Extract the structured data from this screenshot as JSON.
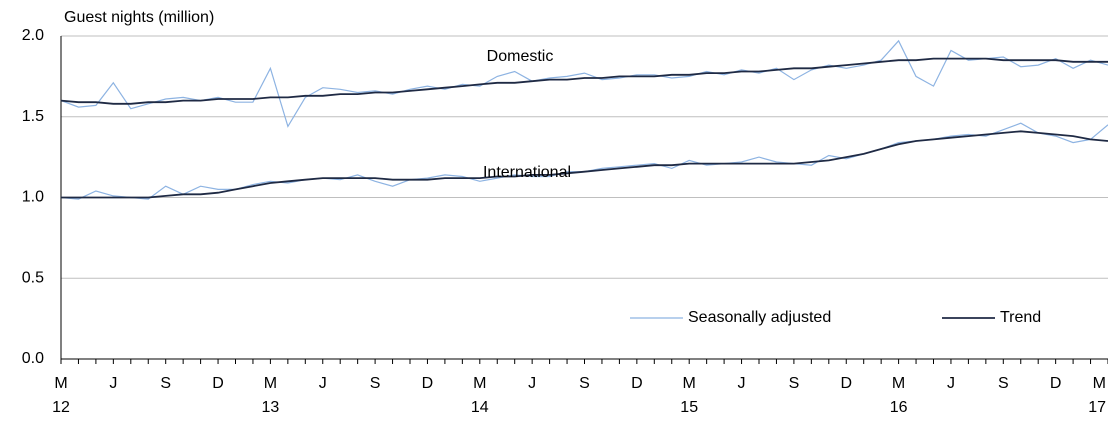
{
  "chart_data": {
    "type": "line",
    "y_axis_label": "Guest nights (million)",
    "categories": [
      "M",
      null,
      null,
      "J",
      null,
      null,
      "S",
      null,
      null,
      "D",
      null,
      null,
      "M",
      null,
      null,
      "J",
      null,
      null,
      "S",
      null,
      null,
      "D",
      null,
      null,
      "M",
      null,
      null,
      "J",
      null,
      null,
      "S",
      null,
      null,
      "D",
      null,
      null,
      "M",
      null,
      null,
      "J",
      null,
      null,
      "S",
      null,
      null,
      "D",
      null,
      null,
      "M",
      null,
      null,
      "J",
      null,
      null,
      "S",
      null,
      null,
      "D",
      null,
      null,
      "M"
    ],
    "x_group_labels": [
      "12",
      "13",
      "14",
      "15",
      "16",
      "17"
    ],
    "ylim": [
      0,
      2
    ],
    "yticks": [
      {
        "value": 0,
        "label": "0.0"
      },
      {
        "value": 0.5,
        "label": "0.5"
      },
      {
        "value": 1,
        "label": "1.0"
      },
      {
        "value": 1.5,
        "label": "1.5"
      },
      {
        "value": 2,
        "label": "2.0"
      }
    ],
    "grid": true,
    "legend": "lower right",
    "annotations": [
      "Domestic",
      "International"
    ],
    "series": [
      {
        "name": "Seasonally adjusted",
        "color": "#8db3e2",
        "group": "Domestic",
        "values": [
          1.6,
          1.56,
          1.57,
          1.71,
          1.55,
          1.58,
          1.61,
          1.62,
          1.6,
          1.62,
          1.59,
          1.59,
          1.8,
          1.44,
          1.62,
          1.68,
          1.67,
          1.65,
          1.66,
          1.64,
          1.67,
          1.69,
          1.67,
          1.7,
          1.69,
          1.75,
          1.78,
          1.72,
          1.74,
          1.75,
          1.77,
          1.73,
          1.74,
          1.76,
          1.76,
          1.74,
          1.75,
          1.78,
          1.76,
          1.79,
          1.77,
          1.8,
          1.73,
          1.79,
          1.82,
          1.8,
          1.82,
          1.85,
          1.97,
          1.75,
          1.69,
          1.91,
          1.85,
          1.86,
          1.87,
          1.81,
          1.82,
          1.86,
          1.8,
          1.85,
          1.82
        ]
      },
      {
        "name": "Trend",
        "color": "#1f2a44",
        "group": "Domestic",
        "values": [
          1.6,
          1.59,
          1.59,
          1.58,
          1.58,
          1.59,
          1.59,
          1.6,
          1.6,
          1.61,
          1.61,
          1.61,
          1.62,
          1.62,
          1.63,
          1.63,
          1.64,
          1.64,
          1.65,
          1.65,
          1.66,
          1.67,
          1.68,
          1.69,
          1.7,
          1.71,
          1.71,
          1.72,
          1.73,
          1.73,
          1.74,
          1.74,
          1.75,
          1.75,
          1.75,
          1.76,
          1.76,
          1.77,
          1.77,
          1.78,
          1.78,
          1.79,
          1.8,
          1.8,
          1.81,
          1.82,
          1.83,
          1.84,
          1.85,
          1.85,
          1.86,
          1.86,
          1.86,
          1.86,
          1.85,
          1.85,
          1.85,
          1.85,
          1.84,
          1.84,
          1.84
        ]
      },
      {
        "name": "Seasonally adjusted",
        "color": "#8db3e2",
        "group": "International",
        "values": [
          1.0,
          0.99,
          1.04,
          1.01,
          1.0,
          0.99,
          1.07,
          1.02,
          1.07,
          1.05,
          1.05,
          1.08,
          1.1,
          1.09,
          1.11,
          1.12,
          1.11,
          1.14,
          1.1,
          1.07,
          1.11,
          1.12,
          1.14,
          1.13,
          1.1,
          1.12,
          1.14,
          1.13,
          1.13,
          1.16,
          1.16,
          1.18,
          1.19,
          1.2,
          1.21,
          1.18,
          1.23,
          1.2,
          1.21,
          1.22,
          1.25,
          1.22,
          1.21,
          1.2,
          1.26,
          1.24,
          1.27,
          1.3,
          1.34,
          1.35,
          1.36,
          1.38,
          1.39,
          1.38,
          1.42,
          1.46,
          1.4,
          1.38,
          1.34,
          1.36,
          1.45
        ]
      },
      {
        "name": "Trend",
        "color": "#1f2a44",
        "group": "International",
        "values": [
          1.0,
          1.0,
          1.0,
          1.0,
          1.0,
          1.0,
          1.01,
          1.02,
          1.02,
          1.03,
          1.05,
          1.07,
          1.09,
          1.1,
          1.11,
          1.12,
          1.12,
          1.12,
          1.12,
          1.11,
          1.11,
          1.11,
          1.12,
          1.12,
          1.12,
          1.13,
          1.13,
          1.14,
          1.14,
          1.15,
          1.16,
          1.17,
          1.18,
          1.19,
          1.2,
          1.2,
          1.21,
          1.21,
          1.21,
          1.21,
          1.21,
          1.21,
          1.21,
          1.22,
          1.23,
          1.25,
          1.27,
          1.3,
          1.33,
          1.35,
          1.36,
          1.37,
          1.38,
          1.39,
          1.4,
          1.41,
          1.4,
          1.39,
          1.38,
          1.36,
          1.35
        ]
      }
    ]
  }
}
